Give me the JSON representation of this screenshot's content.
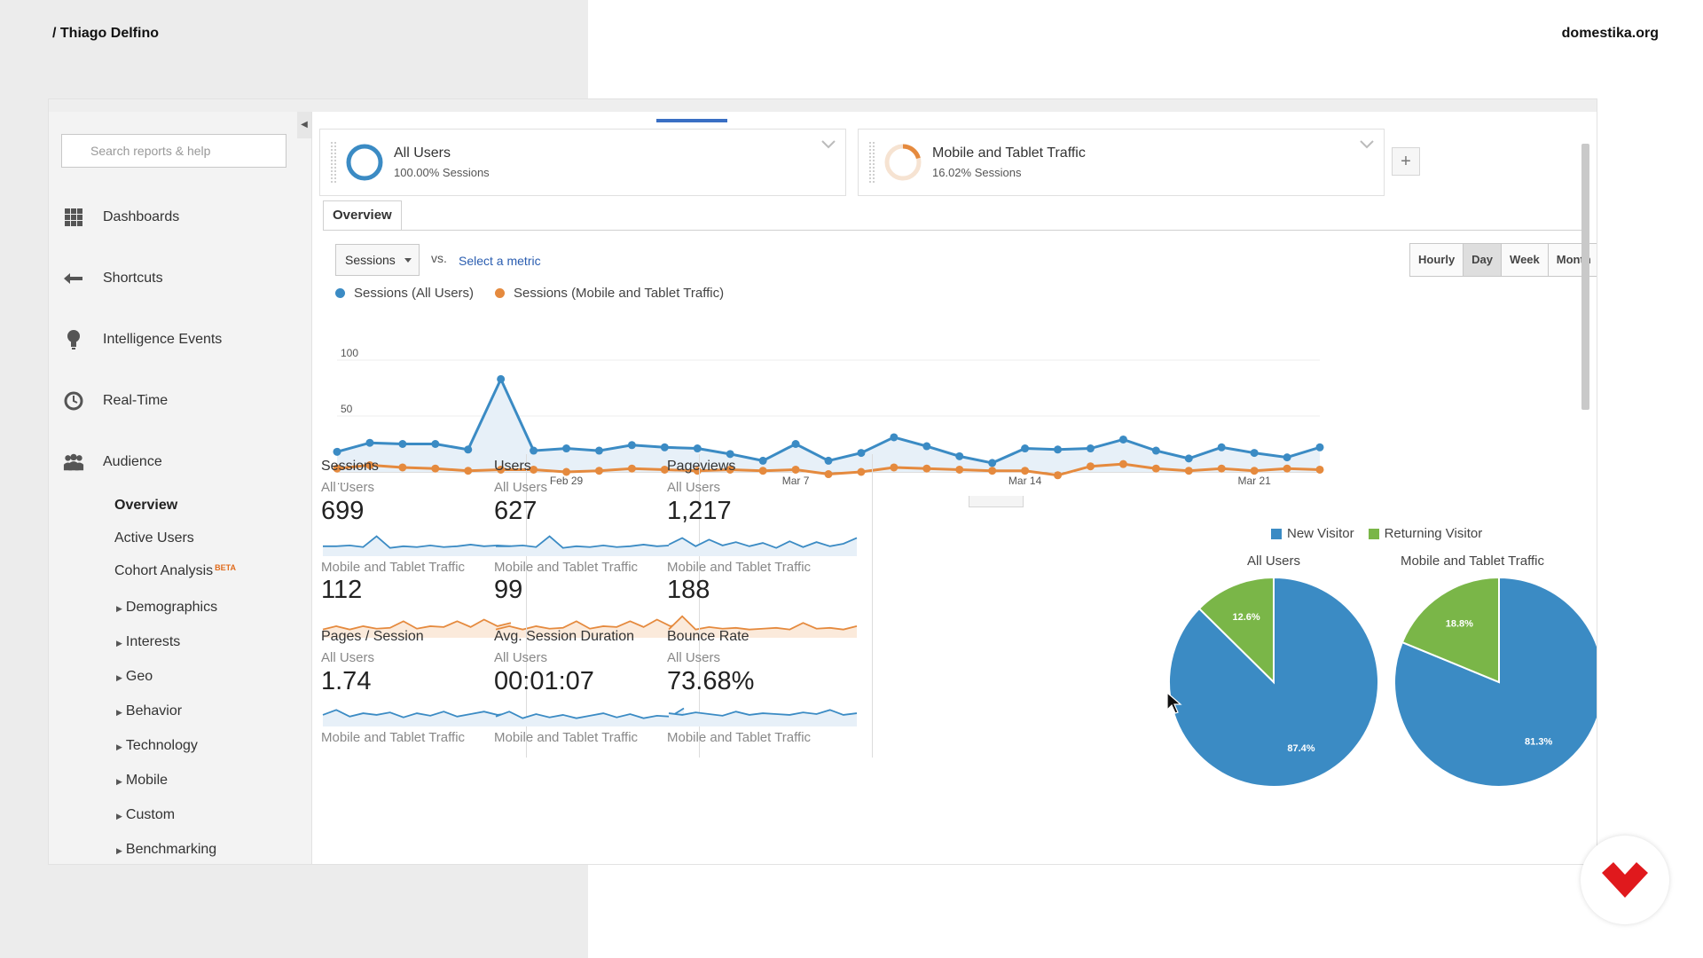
{
  "overlay": {
    "author": "/ Thiago Delfino",
    "site": "domestika.org"
  },
  "search": {
    "placeholder": "Search reports & help"
  },
  "nav": {
    "dashboards": "Dashboards",
    "shortcuts": "Shortcuts",
    "intelligence": "Intelligence Events",
    "realtime": "Real-Time",
    "audience": "Audience"
  },
  "audience_sub": {
    "overview": "Overview",
    "active_users": "Active Users",
    "cohort": "Cohort Analysis",
    "beta": "BETA"
  },
  "audience_groups": [
    "Demographics",
    "Interests",
    "Geo",
    "Behavior",
    "Technology",
    "Mobile",
    "Custom",
    "Benchmarking"
  ],
  "segments": [
    {
      "title": "All Users",
      "subtitle": "100.00% Sessions",
      "color": "#3b8bc4"
    },
    {
      "title": "Mobile and Tablet Traffic",
      "subtitle": "16.02% Sessions",
      "color": "#e58a3e"
    }
  ],
  "tab": "Overview",
  "controls": {
    "metric": "Sessions",
    "vs": "vs.",
    "select_metric": "Select a metric",
    "granularity": [
      "Hourly",
      "Day",
      "Week",
      "Month"
    ],
    "active_granularity": "Day"
  },
  "chart_data": {
    "type": "line",
    "series": [
      {
        "name": "Sessions (All Users)",
        "color": "#3b8bc4",
        "values": [
          18,
          26,
          25,
          25,
          20,
          83,
          19,
          21,
          19,
          24,
          22,
          21,
          16,
          10,
          25,
          10,
          17,
          31,
          23,
          14,
          8,
          21,
          20,
          21,
          29,
          19,
          12,
          22,
          17,
          13,
          22
        ]
      },
      {
        "name": "Sessions (Mobile and Tablet Traffic)",
        "color": "#e58a3e",
        "values": [
          3,
          6,
          4,
          3,
          1,
          2,
          2,
          0,
          1,
          3,
          2,
          1,
          2,
          1,
          2,
          -2,
          0,
          4,
          3,
          2,
          1,
          1,
          -3,
          5,
          7,
          3,
          1,
          3,
          1,
          3,
          2
        ]
      }
    ],
    "y_ticks": [
      "100",
      "50"
    ],
    "ylim": [
      0,
      100
    ],
    "x_tick_labels": [
      "...",
      "Feb 29",
      "Mar 7",
      "Mar 14",
      "Mar 21"
    ],
    "grid": true
  },
  "tiles": [
    {
      "title": "Sessions",
      "seg1": "All Users",
      "v1": "699",
      "seg2": "Mobile and Tablet Traffic",
      "v2": "112",
      "spark1": [
        12,
        12,
        13,
        11,
        24,
        10,
        12,
        11,
        13,
        11,
        12,
        14,
        12,
        13,
        12
      ],
      "spark2": [
        10,
        14,
        10,
        14,
        11,
        12,
        20,
        11,
        14,
        13,
        20,
        13,
        22,
        14,
        18
      ]
    },
    {
      "title": "Users",
      "seg1": "All Users",
      "v1": "627",
      "seg2": "Mobile and Tablet Traffic",
      "v2": "99",
      "spark1": [
        12,
        12,
        13,
        11,
        24,
        10,
        12,
        11,
        13,
        11,
        12,
        14,
        12,
        13,
        12
      ],
      "spark2": [
        10,
        14,
        10,
        14,
        11,
        12,
        20,
        11,
        14,
        13,
        20,
        13,
        22,
        14,
        18
      ]
    },
    {
      "title": "Pageviews",
      "seg1": "All Users",
      "v1": "1,217",
      "seg2": "Mobile and Tablet Traffic",
      "v2": "188",
      "spark1": [
        14,
        22,
        12,
        20,
        13,
        17,
        12,
        16,
        10,
        18,
        11,
        17,
        12,
        15,
        22
      ],
      "spark2": [
        10,
        26,
        10,
        13,
        11,
        12,
        10,
        11,
        12,
        10,
        18,
        11,
        12,
        10,
        14
      ]
    },
    {
      "title": "Pages / Session",
      "seg1": "All Users",
      "v1": "1.74",
      "seg2": "Mobile and Tablet Traffic",
      "spark1": [
        14,
        20,
        12,
        16,
        14,
        17,
        11,
        16,
        13,
        18,
        12,
        15,
        18,
        14,
        16
      ]
    },
    {
      "title": "Avg. Session Duration",
      "seg1": "All Users",
      "v1": "00:01:07",
      "seg2": "Mobile and Tablet Traffic",
      "spark1": [
        12,
        18,
        10,
        15,
        11,
        14,
        10,
        13,
        16,
        11,
        15,
        10,
        13,
        12,
        22
      ]
    },
    {
      "title": "Bounce Rate",
      "seg1": "All Users",
      "v1": "73.68%",
      "seg2": "Mobile and Tablet Traffic",
      "spark1": [
        16,
        14,
        17,
        15,
        13,
        18,
        14,
        16,
        15,
        14,
        17,
        15,
        20,
        14,
        16
      ]
    }
  ],
  "pies": {
    "legend": [
      {
        "name": "New Visitor",
        "color": "#3b8bc4"
      },
      {
        "name": "Returning Visitor",
        "color": "#7ab648"
      }
    ],
    "charts": [
      {
        "title": "All Users",
        "slices": [
          {
            "name": "New Visitor",
            "value": 87.4,
            "label": "87.4%"
          },
          {
            "name": "Returning Visitor",
            "value": 12.6,
            "label": "12.6%"
          }
        ]
      },
      {
        "title": "Mobile and Tablet Traffic",
        "slices": [
          {
            "name": "New Visitor",
            "value": 81.3,
            "label": "81.3%"
          },
          {
            "name": "Returning Visitor",
            "value": 18.8,
            "label": "18.8%"
          }
        ]
      }
    ]
  }
}
